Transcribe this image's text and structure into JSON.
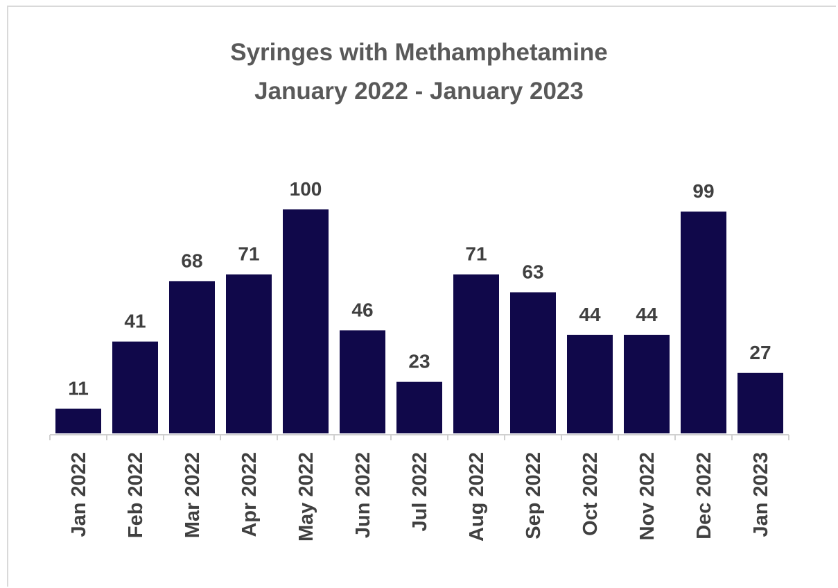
{
  "chart_data": {
    "type": "bar",
    "title": "Syringes with Methamphetamine",
    "subtitle": "January 2022 - January 2023",
    "categories": [
      "Jan 2022",
      "Feb 2022",
      "Mar 2022",
      "Apr 2022",
      "May 2022",
      "Jun 2022",
      "Jul 2022",
      "Aug 2022",
      "Sep 2022",
      "Oct 2022",
      "Nov 2022",
      "Dec 2022",
      "Jan 2023"
    ],
    "values": [
      11,
      41,
      68,
      71,
      100,
      46,
      23,
      71,
      63,
      44,
      44,
      99,
      27
    ],
    "ylim": [
      0,
      100
    ],
    "bar_color": "#10084a",
    "grid": false,
    "data_labels": true,
    "x_tick_rotation": "vertical"
  }
}
